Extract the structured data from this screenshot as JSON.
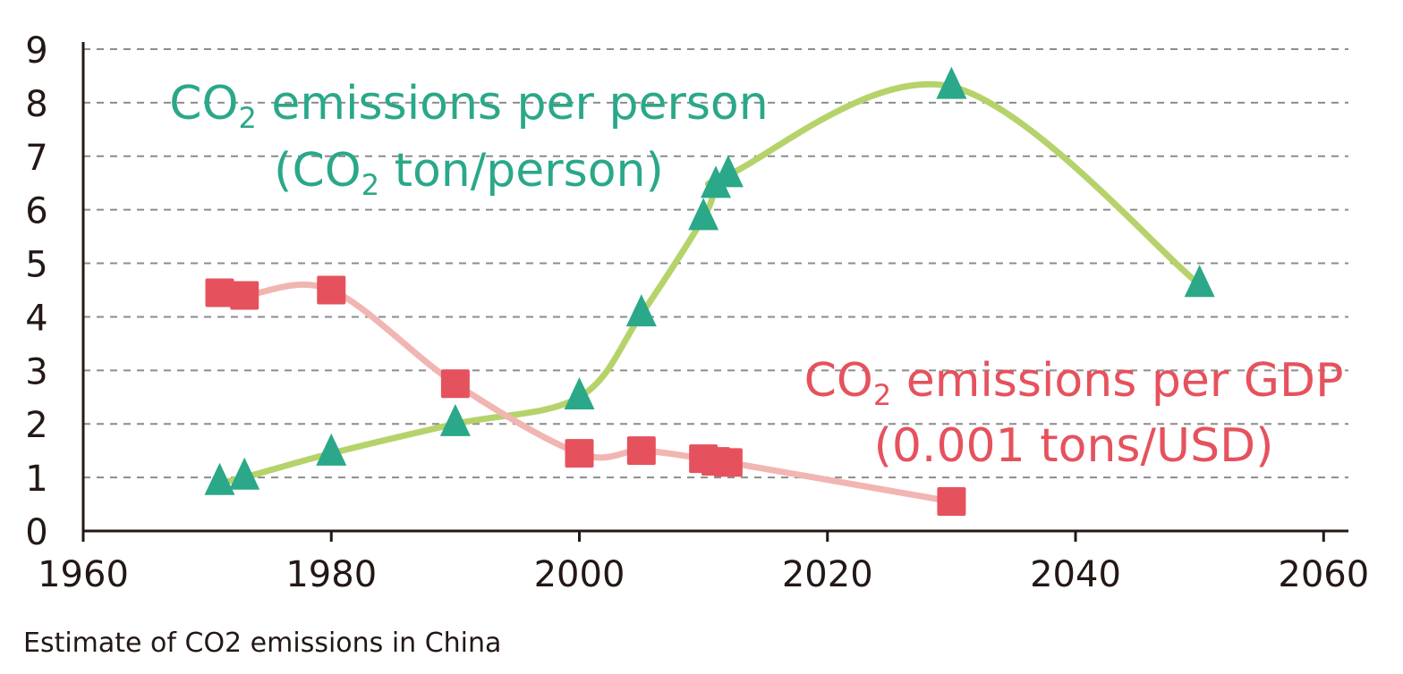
{
  "chart_data": {
    "type": "line",
    "title": "",
    "caption": "Estimate of CO2 emissions in China",
    "xlabel": "",
    "ylabel": "",
    "xlim": [
      1960,
      2062
    ],
    "ylim": [
      0,
      9
    ],
    "x_ticks": [
      1960,
      1980,
      2000,
      2020,
      2040,
      2060
    ],
    "y_ticks": [
      0,
      1,
      2,
      3,
      4,
      5,
      6,
      7,
      8,
      9
    ],
    "grid": "horizontal-dashed",
    "series": [
      {
        "name": "CO2 emissions per person (CO2 ton/person)",
        "label_lines": [
          {
            "main": "CO",
            "sub": "2",
            "rest": " emissions per person"
          },
          {
            "main": "(CO",
            "sub": "2",
            "rest": " ton/person)"
          }
        ],
        "color": "#2aa889",
        "line_color": "#b5d36a",
        "marker": "triangle",
        "x": [
          1971,
          1973,
          1980,
          1990,
          2000,
          2005,
          2010,
          2011,
          2012,
          2030,
          2050
        ],
        "y": [
          0.9,
          1.0,
          1.45,
          2.0,
          2.5,
          4.05,
          5.85,
          6.45,
          6.65,
          8.3,
          4.6
        ]
      },
      {
        "name": "CO2 emissions per GDP (0.001 tons/USD)",
        "label_lines": [
          {
            "main": "CO",
            "sub": "2",
            "rest": " emissions per GDP"
          },
          {
            "main": "(0.001 tons/USD)",
            "sub": "",
            "rest": ""
          }
        ],
        "color": "#e5525d",
        "line_color": "#f1b5b2",
        "marker": "square",
        "x": [
          1971,
          1973,
          1980,
          1990,
          2000,
          2005,
          2010,
          2011,
          2012,
          2030
        ],
        "y": [
          4.45,
          4.4,
          4.5,
          2.75,
          1.45,
          1.5,
          1.35,
          1.3,
          1.28,
          0.55
        ]
      }
    ]
  }
}
